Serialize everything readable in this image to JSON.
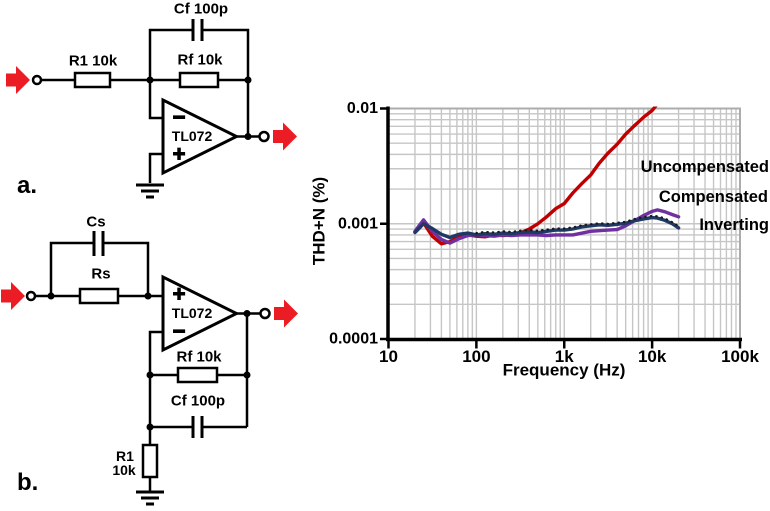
{
  "figure": {
    "arrow_color": "#EB1C24",
    "circuit_a": {
      "panel_label": "a.",
      "labels": {
        "cf": "Cf 100p",
        "r1": "R1 10k",
        "rf": "Rf 10k",
        "opamp": "TL072",
        "minus": "−",
        "plus": "+"
      }
    },
    "circuit_b": {
      "panel_label": "b.",
      "labels": {
        "cs": "Cs",
        "rs": "Rs",
        "rf": "Rf 10k",
        "cf": "Cf 100p",
        "r1_line1": "R1",
        "r1_line2": "10k",
        "opamp": "TL072",
        "minus": "−",
        "plus": "+"
      }
    }
  },
  "chart_data": {
    "type": "line",
    "x_scale": "log",
    "y_scale": "log",
    "xlabel": "Frequency (Hz)",
    "ylabel": "THD+N (%)",
    "xlim": [
      10,
      100000
    ],
    "ylim": [
      0.0001,
      0.01
    ],
    "grid": "on",
    "legend_position": "annotations right inside plot",
    "x_ticks": [
      {
        "value": 10,
        "label": "10"
      },
      {
        "value": 100,
        "label": "100"
      },
      {
        "value": 1000,
        "label": "1k"
      },
      {
        "value": 10000,
        "label": "10k"
      },
      {
        "value": 100000,
        "label": "100k"
      }
    ],
    "y_ticks": [
      {
        "value": 0.01,
        "label": "0.01"
      },
      {
        "value": 0.001,
        "label": "0.001"
      },
      {
        "value": 0.0001,
        "label": "0.0001"
      }
    ],
    "series": [
      {
        "name": "Uncompensated",
        "color": "#C00000",
        "style": "solid",
        "x": [
          20,
          25,
          31.5,
          40,
          50,
          63,
          80,
          100,
          125,
          160,
          200,
          250,
          315,
          400,
          500,
          630,
          800,
          1000,
          1250,
          1600,
          2000,
          2500,
          3150,
          4000,
          5000,
          6300,
          8000,
          10000,
          12000
        ],
        "y": [
          0.00085,
          0.00102,
          0.00078,
          0.00067,
          0.0007,
          0.00077,
          0.0008,
          0.00078,
          0.00077,
          0.0008,
          0.00079,
          0.0008,
          0.00083,
          0.0009,
          0.001,
          0.00115,
          0.00135,
          0.0015,
          0.00185,
          0.00225,
          0.00265,
          0.00335,
          0.0041,
          0.0049,
          0.006,
          0.0071,
          0.0084,
          0.0096,
          0.0114
        ]
      },
      {
        "name": "Compensated",
        "color": "#7030A0",
        "style": "solid",
        "x": [
          20,
          25,
          31.5,
          40,
          50,
          63,
          80,
          100,
          125,
          160,
          200,
          250,
          315,
          400,
          500,
          630,
          800,
          1000,
          1250,
          1600,
          2000,
          2500,
          3150,
          4000,
          5000,
          6300,
          8000,
          10000,
          11500,
          14000,
          17000,
          20000
        ],
        "y": [
          0.00086,
          0.00108,
          0.00086,
          0.00073,
          0.00068,
          0.00074,
          0.00079,
          0.0008,
          0.00079,
          0.00078,
          0.0008,
          0.00079,
          0.0008,
          0.0008,
          0.0008,
          0.00079,
          0.0008,
          0.0008,
          0.0008,
          0.00083,
          0.00086,
          0.00087,
          0.00088,
          0.00089,
          0.00096,
          0.00106,
          0.00118,
          0.00128,
          0.00132,
          0.00127,
          0.0012,
          0.00115
        ]
      },
      {
        "name": "Inverting",
        "color": "#1F3864",
        "style": "solid",
        "x": [
          20,
          25,
          31.5,
          40,
          50,
          63,
          80,
          100,
          125,
          160,
          200,
          250,
          315,
          400,
          500,
          630,
          800,
          1000,
          1250,
          1600,
          2000,
          2500,
          3150,
          4000,
          5000,
          6300,
          8000,
          10000,
          11500,
          14000,
          17000,
          20000
        ],
        "y": [
          0.00084,
          0.001,
          0.00091,
          0.00081,
          0.00076,
          0.00081,
          0.00083,
          0.0008,
          0.00082,
          0.00081,
          0.00083,
          0.00082,
          0.00084,
          0.00085,
          0.00084,
          0.00086,
          0.00088,
          0.00088,
          0.0009,
          0.00094,
          0.00096,
          0.00098,
          0.00097,
          0.00099,
          0.00101,
          0.00106,
          0.0011,
          0.00113,
          0.00112,
          0.00107,
          0.001,
          0.00092
        ]
      },
      {
        "name": "Inverting dotted trace",
        "color": "#1A1A1A",
        "style": "dotted",
        "x": [
          100,
          125,
          160,
          200,
          250,
          315,
          400,
          500,
          630,
          800,
          1000,
          1250,
          1600,
          2000,
          2500,
          3150,
          4000,
          5000,
          6300,
          8000,
          10000,
          11500,
          14000,
          17000,
          20000
        ],
        "y": [
          0.00083,
          0.00085,
          0.00084,
          0.00086,
          0.00085,
          0.00087,
          0.00088,
          0.00087,
          0.00089,
          0.00091,
          0.00091,
          0.00093,
          0.00097,
          0.00099,
          0.00101,
          0.001,
          0.00102,
          0.00104,
          0.0011,
          0.00114,
          0.00117,
          0.00116,
          0.00111,
          0.00103,
          0.00095
        ]
      }
    ]
  }
}
